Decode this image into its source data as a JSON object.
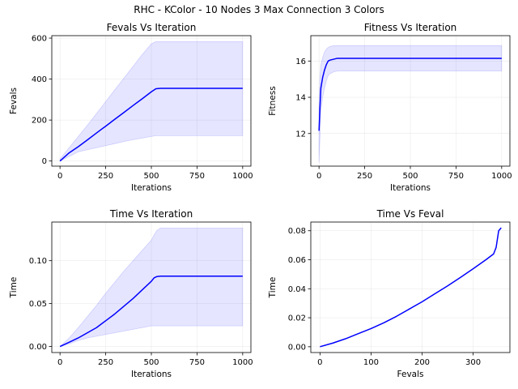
{
  "figure": {
    "suptitle": "RHC - KColor - 10 Nodes 3 Max Connection 3 Colors",
    "line_color": "#0000ff",
    "band_color": "#0000ff",
    "band_opacity": 0.1
  },
  "chart_data": [
    {
      "id": "fevals",
      "type": "line",
      "title": "Fevals Vs Iteration",
      "xlabel": "Iterations",
      "ylabel": "Fevals",
      "xlim": [
        -45,
        1045
      ],
      "ylim": [
        -25,
        612
      ],
      "xticks": [
        0,
        250,
        500,
        750,
        1000
      ],
      "yticks": [
        0,
        200,
        400,
        600
      ],
      "grid": true,
      "x": [
        0,
        50,
        100,
        150,
        200,
        250,
        300,
        350,
        400,
        450,
        500,
        525,
        550,
        600,
        700,
        800,
        900,
        1000
      ],
      "y": [
        0,
        40,
        70,
        103,
        137,
        170,
        204,
        237,
        271,
        304,
        338,
        353,
        355,
        355,
        355,
        355,
        355,
        355
      ],
      "band_upper": [
        10,
        65,
        120,
        175,
        232,
        290,
        348,
        405,
        462,
        520,
        572,
        583,
        583,
        583,
        583,
        583,
        583,
        583
      ],
      "band_lower": [
        0,
        22,
        45,
        55,
        65,
        75,
        85,
        95,
        104,
        112,
        120,
        124,
        124,
        124,
        124,
        124,
        124,
        124
      ]
    },
    {
      "id": "fitness",
      "type": "line",
      "title": "Fitness Vs Iteration",
      "xlabel": "Iterations",
      "ylabel": "Fitness",
      "xlim": [
        -45,
        1045
      ],
      "ylim": [
        10.2,
        17.4
      ],
      "xticks": [
        0,
        250,
        500,
        750,
        1000
      ],
      "yticks": [
        12,
        14,
        16
      ],
      "grid": true,
      "x": [
        0,
        5,
        10,
        20,
        30,
        40,
        50,
        60,
        80,
        100,
        150,
        200,
        400,
        600,
        800,
        1000
      ],
      "y": [
        12.15,
        13.4,
        14.5,
        15.1,
        15.5,
        15.8,
        16.0,
        16.05,
        16.1,
        16.15,
        16.15,
        16.15,
        16.15,
        16.15,
        16.15,
        16.15
      ],
      "band_upper": [
        13.8,
        15.1,
        15.8,
        16.2,
        16.5,
        16.65,
        16.75,
        16.8,
        16.85,
        16.85,
        16.85,
        16.85,
        16.85,
        16.85,
        16.85,
        16.85
      ],
      "band_lower": [
        10.4,
        11.7,
        13.2,
        14.0,
        14.5,
        14.9,
        15.2,
        15.3,
        15.4,
        15.45,
        15.45,
        15.45,
        15.45,
        15.45,
        15.45,
        15.45
      ]
    },
    {
      "id": "time-iter",
      "type": "line",
      "title": "Time Vs Iteration",
      "xlabel": "Iterations",
      "ylabel": "Time",
      "xlim": [
        -45,
        1045
      ],
      "ylim": [
        -0.007,
        0.145
      ],
      "xticks": [
        0,
        250,
        500,
        750,
        1000
      ],
      "yticks": [
        0.0,
        0.05,
        0.1
      ],
      "yticklabels": [
        "0.00",
        "0.05",
        "0.10"
      ],
      "grid": true,
      "x": [
        0,
        50,
        100,
        150,
        200,
        250,
        300,
        350,
        400,
        450,
        500,
        515,
        530,
        550,
        600,
        700,
        800,
        900,
        1000
      ],
      "y": [
        0,
        0.005,
        0.01,
        0.016,
        0.022,
        0.03,
        0.038,
        0.047,
        0.056,
        0.066,
        0.076,
        0.08,
        0.0815,
        0.082,
        0.082,
        0.082,
        0.082,
        0.082,
        0.082
      ],
      "band_upper": [
        0,
        0.01,
        0.022,
        0.035,
        0.048,
        0.062,
        0.075,
        0.088,
        0.1,
        0.112,
        0.124,
        0.13,
        0.135,
        0.138,
        0.138,
        0.138,
        0.138,
        0.138,
        0.138
      ],
      "band_lower": [
        0,
        0.003,
        0.007,
        0.01,
        0.012,
        0.014,
        0.016,
        0.018,
        0.02,
        0.022,
        0.024,
        0.024,
        0.024,
        0.024,
        0.024,
        0.024,
        0.024,
        0.024,
        0.024
      ]
    },
    {
      "id": "time-feval",
      "type": "line",
      "title": "Time Vs Feval",
      "xlabel": "Fevals",
      "ylabel": "Time",
      "xlim": [
        -18,
        372
      ],
      "ylim": [
        -0.004,
        0.086
      ],
      "xticks": [
        0,
        100,
        200,
        300
      ],
      "yticks": [
        0.0,
        0.02,
        0.04,
        0.06,
        0.08
      ],
      "yticklabels": [
        "0.00",
        "0.02",
        "0.04",
        "0.06",
        "0.08"
      ],
      "grid": true,
      "x": [
        0,
        25,
        50,
        75,
        100,
        125,
        150,
        175,
        200,
        225,
        250,
        275,
        300,
        325,
        340,
        345,
        350,
        355
      ],
      "y": [
        0,
        0.0025,
        0.0055,
        0.009,
        0.0125,
        0.0165,
        0.021,
        0.026,
        0.031,
        0.0365,
        0.042,
        0.0478,
        0.0538,
        0.06,
        0.064,
        0.0685,
        0.08,
        0.082
      ]
    }
  ]
}
